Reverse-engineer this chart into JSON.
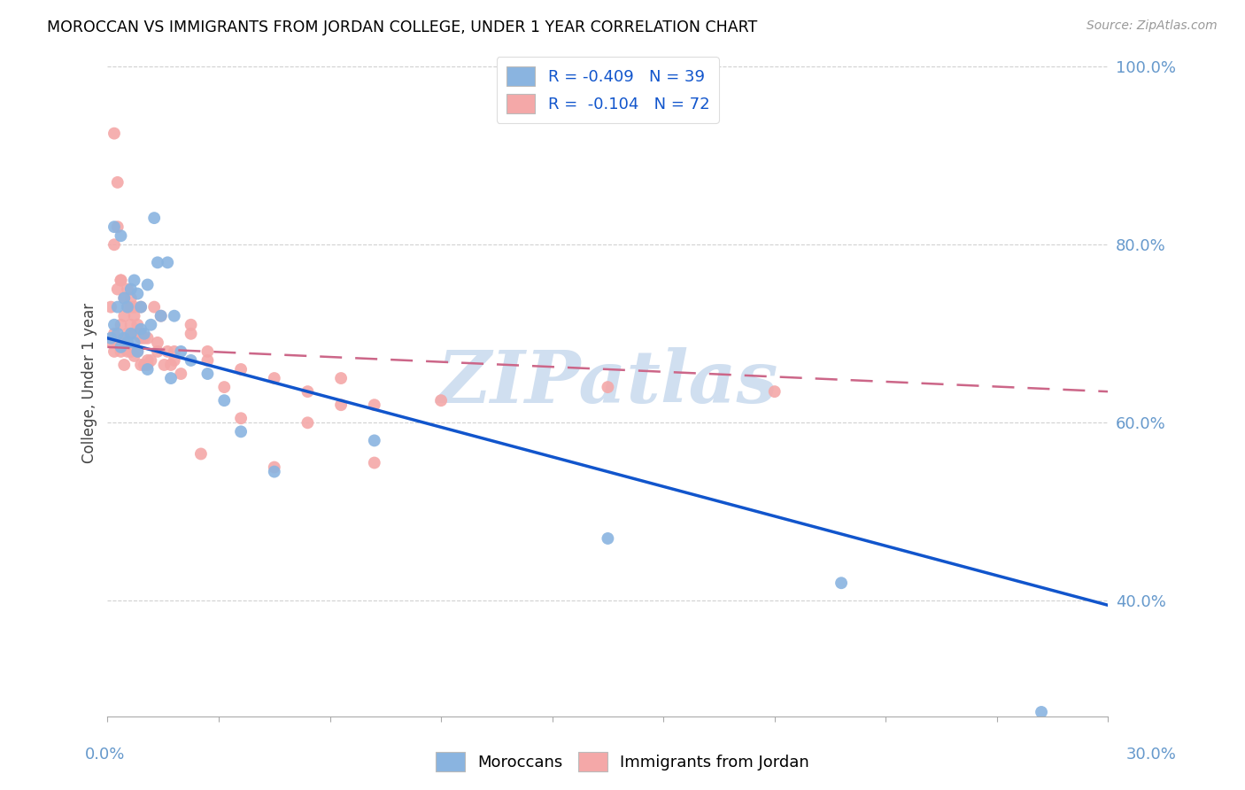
{
  "title": "MOROCCAN VS IMMIGRANTS FROM JORDAN COLLEGE, UNDER 1 YEAR CORRELATION CHART",
  "source": "Source: ZipAtlas.com",
  "ylabel": "College, Under 1 year",
  "legend_blue_label": "R = -0.409   N = 39",
  "legend_pink_label": "R =  -0.104   N = 72",
  "legend_moroccans": "Moroccans",
  "legend_jordan": "Immigrants from Jordan",
  "watermark": "ZIPatlas",
  "xlim": [
    0.0,
    0.3
  ],
  "ylim": [
    0.27,
    1.02
  ],
  "yticks": [
    0.4,
    0.6,
    0.8,
    1.0
  ],
  "ytick_labels": [
    "40.0%",
    "60.0%",
    "80.0%",
    "100.0%"
  ],
  "blue_line": {
    "x0": 0.0,
    "y0": 0.695,
    "x1": 0.3,
    "y1": 0.395
  },
  "pink_line": {
    "x0": 0.0,
    "y0": 0.685,
    "x1": 0.3,
    "y1": 0.635
  },
  "blue_color": "#8AB4E0",
  "pink_color": "#F4A8A8",
  "blue_line_color": "#1155CC",
  "pink_line_color": "#CC6688",
  "grid_color": "#CCCCCC",
  "background_color": "#FFFFFF",
  "title_color": "#000000",
  "axis_label_color": "#6699CC",
  "watermark_color": "#D0DFF0",
  "blue_x": [
    0.001,
    0.002,
    0.003,
    0.003,
    0.004,
    0.005,
    0.005,
    0.006,
    0.006,
    0.007,
    0.007,
    0.008,
    0.009,
    0.009,
    0.01,
    0.01,
    0.011,
    0.012,
    0.013,
    0.014,
    0.015,
    0.016,
    0.018,
    0.019,
    0.02,
    0.022,
    0.025,
    0.03,
    0.035,
    0.04,
    0.05,
    0.08,
    0.15,
    0.22,
    0.28,
    0.002,
    0.004,
    0.008,
    0.012
  ],
  "blue_y": [
    0.695,
    0.71,
    0.7,
    0.73,
    0.685,
    0.695,
    0.74,
    0.69,
    0.73,
    0.7,
    0.75,
    0.69,
    0.68,
    0.745,
    0.705,
    0.73,
    0.7,
    0.755,
    0.71,
    0.83,
    0.78,
    0.72,
    0.78,
    0.65,
    0.72,
    0.68,
    0.67,
    0.655,
    0.625,
    0.59,
    0.545,
    0.58,
    0.47,
    0.42,
    0.275,
    0.82,
    0.81,
    0.76,
    0.66
  ],
  "pink_x": [
    0.001,
    0.001,
    0.002,
    0.002,
    0.002,
    0.003,
    0.003,
    0.003,
    0.004,
    0.004,
    0.004,
    0.005,
    0.005,
    0.005,
    0.006,
    0.006,
    0.006,
    0.007,
    0.007,
    0.007,
    0.008,
    0.008,
    0.008,
    0.009,
    0.009,
    0.01,
    0.01,
    0.01,
    0.011,
    0.011,
    0.012,
    0.012,
    0.013,
    0.014,
    0.015,
    0.016,
    0.017,
    0.018,
    0.019,
    0.02,
    0.022,
    0.025,
    0.028,
    0.03,
    0.035,
    0.04,
    0.05,
    0.06,
    0.07,
    0.08,
    0.002,
    0.003,
    0.004,
    0.005,
    0.006,
    0.007,
    0.008,
    0.009,
    0.01,
    0.012,
    0.015,
    0.02,
    0.025,
    0.03,
    0.04,
    0.05,
    0.06,
    0.07,
    0.08,
    0.1,
    0.15,
    0.2
  ],
  "pink_y": [
    0.73,
    0.69,
    0.7,
    0.68,
    0.925,
    0.75,
    0.69,
    0.87,
    0.71,
    0.68,
    0.76,
    0.72,
    0.69,
    0.665,
    0.73,
    0.7,
    0.68,
    0.71,
    0.68,
    0.73,
    0.7,
    0.675,
    0.72,
    0.7,
    0.68,
    0.7,
    0.665,
    0.73,
    0.695,
    0.665,
    0.695,
    0.665,
    0.67,
    0.73,
    0.68,
    0.72,
    0.665,
    0.68,
    0.665,
    0.67,
    0.655,
    0.7,
    0.565,
    0.68,
    0.64,
    0.605,
    0.55,
    0.6,
    0.62,
    0.555,
    0.8,
    0.82,
    0.76,
    0.74,
    0.75,
    0.74,
    0.73,
    0.71,
    0.695,
    0.67,
    0.69,
    0.68,
    0.71,
    0.67,
    0.66,
    0.65,
    0.635,
    0.65,
    0.62,
    0.625,
    0.64,
    0.635
  ]
}
